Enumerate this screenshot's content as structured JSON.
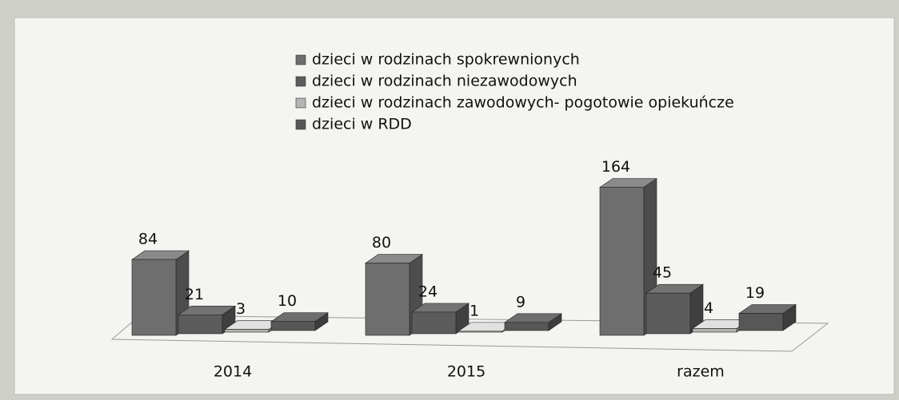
{
  "chart_data": {
    "type": "bar3d",
    "categories": [
      "2014",
      "2015",
      "razem"
    ],
    "series": [
      {
        "name": "dzieci w rodzinach spokrewnionych",
        "color": "#6e6e6e",
        "values": [
          84,
          80,
          164
        ]
      },
      {
        "name": "dzieci w rodzinach niezawodowych",
        "color": "#5c5c5c",
        "values": [
          21,
          24,
          45
        ]
      },
      {
        "name": "dzieci w rodzinach zawodowych- pogotowie opiekuńcze",
        "color": "#b4b4b4",
        "values": [
          3,
          1,
          4
        ]
      },
      {
        "name": "dzieci w RDD",
        "color": "#575757",
        "values": [
          10,
          9,
          19
        ]
      }
    ]
  }
}
